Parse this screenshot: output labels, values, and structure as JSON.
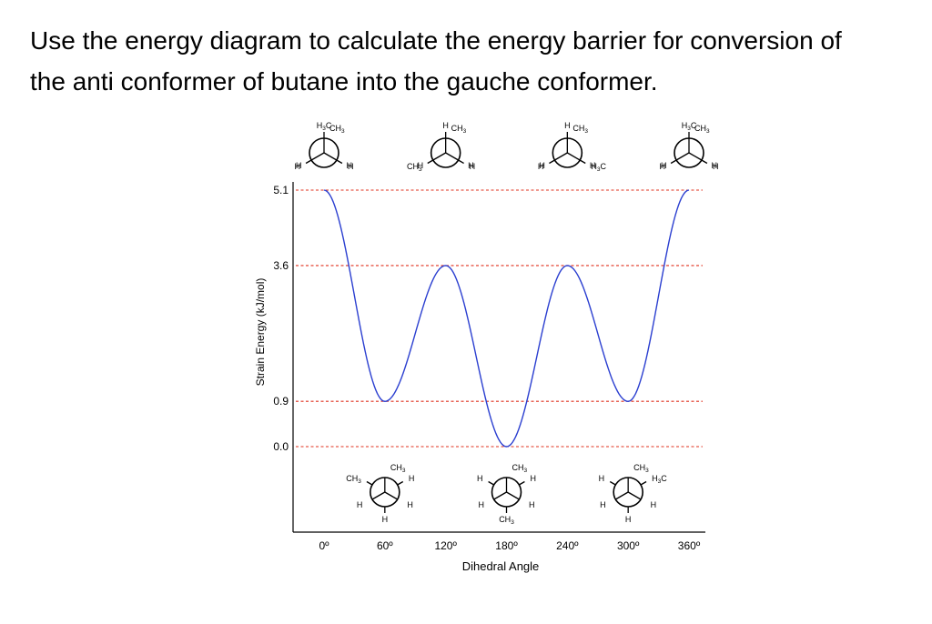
{
  "question": {
    "line1": "Use the energy diagram to calculate the energy barrier for conversion of",
    "line2": "the anti conformer of butane into the gauche conformer."
  },
  "chart_data": {
    "type": "line",
    "xlabel": "Dihedral Angle",
    "ylabel": "Strain Energy (kJ/mol)",
    "x_ticks": [
      {
        "value": 0,
        "label": "0º"
      },
      {
        "value": 60,
        "label": "60º"
      },
      {
        "value": 120,
        "label": "120º"
      },
      {
        "value": 180,
        "label": "180º"
      },
      {
        "value": 240,
        "label": "240º"
      },
      {
        "value": 300,
        "label": "300º"
      },
      {
        "value": 360,
        "label": "360º"
      }
    ],
    "y_ticks": [
      {
        "value": 5.1,
        "label": "5.1"
      },
      {
        "value": 3.6,
        "label": "3.6"
      },
      {
        "value": 0.9,
        "label": "0.9"
      },
      {
        "value": 0.0,
        "label": "0.0"
      }
    ],
    "reference_lines": [
      5.1,
      3.6,
      0.9,
      0.0
    ],
    "reference_line_color": "#e0301e",
    "curve_color": "#2b3fd0",
    "series": [
      {
        "x": [
          0,
          60,
          120,
          180,
          240,
          300,
          360
        ],
        "y": [
          5.1,
          0.9,
          3.6,
          0.0,
          3.6,
          0.9,
          5.1
        ]
      }
    ],
    "grid": false,
    "newman_projections": [
      {
        "angle": 0,
        "position": "top",
        "front": [
          "CH3",
          "H",
          "H"
        ],
        "back": [
          "H3C",
          "H",
          "H"
        ]
      },
      {
        "angle": 60,
        "position": "bottom",
        "front": [
          "CH3",
          "H",
          "H"
        ],
        "back": [
          "CH3",
          "H",
          "H"
        ]
      },
      {
        "angle": 120,
        "position": "top",
        "front": [
          "CH3",
          "H",
          "H"
        ],
        "back": [
          "CH3",
          "H",
          "H"
        ]
      },
      {
        "angle": 180,
        "position": "bottom",
        "front": [
          "CH3",
          "H",
          "H"
        ],
        "back": [
          "CH3",
          "H",
          "H"
        ]
      },
      {
        "angle": 240,
        "position": "top",
        "front": [
          "CH3",
          "H",
          "H"
        ],
        "back": [
          "H3C",
          "H",
          "H"
        ]
      },
      {
        "angle": 300,
        "position": "bottom",
        "front": [
          "CH3",
          "H",
          "H"
        ],
        "back": [
          "H3C",
          "H",
          "H"
        ]
      },
      {
        "angle": 360,
        "position": "top",
        "front": [
          "CH3",
          "H",
          "H"
        ],
        "back": [
          "H3C",
          "H",
          "H"
        ]
      }
    ]
  }
}
